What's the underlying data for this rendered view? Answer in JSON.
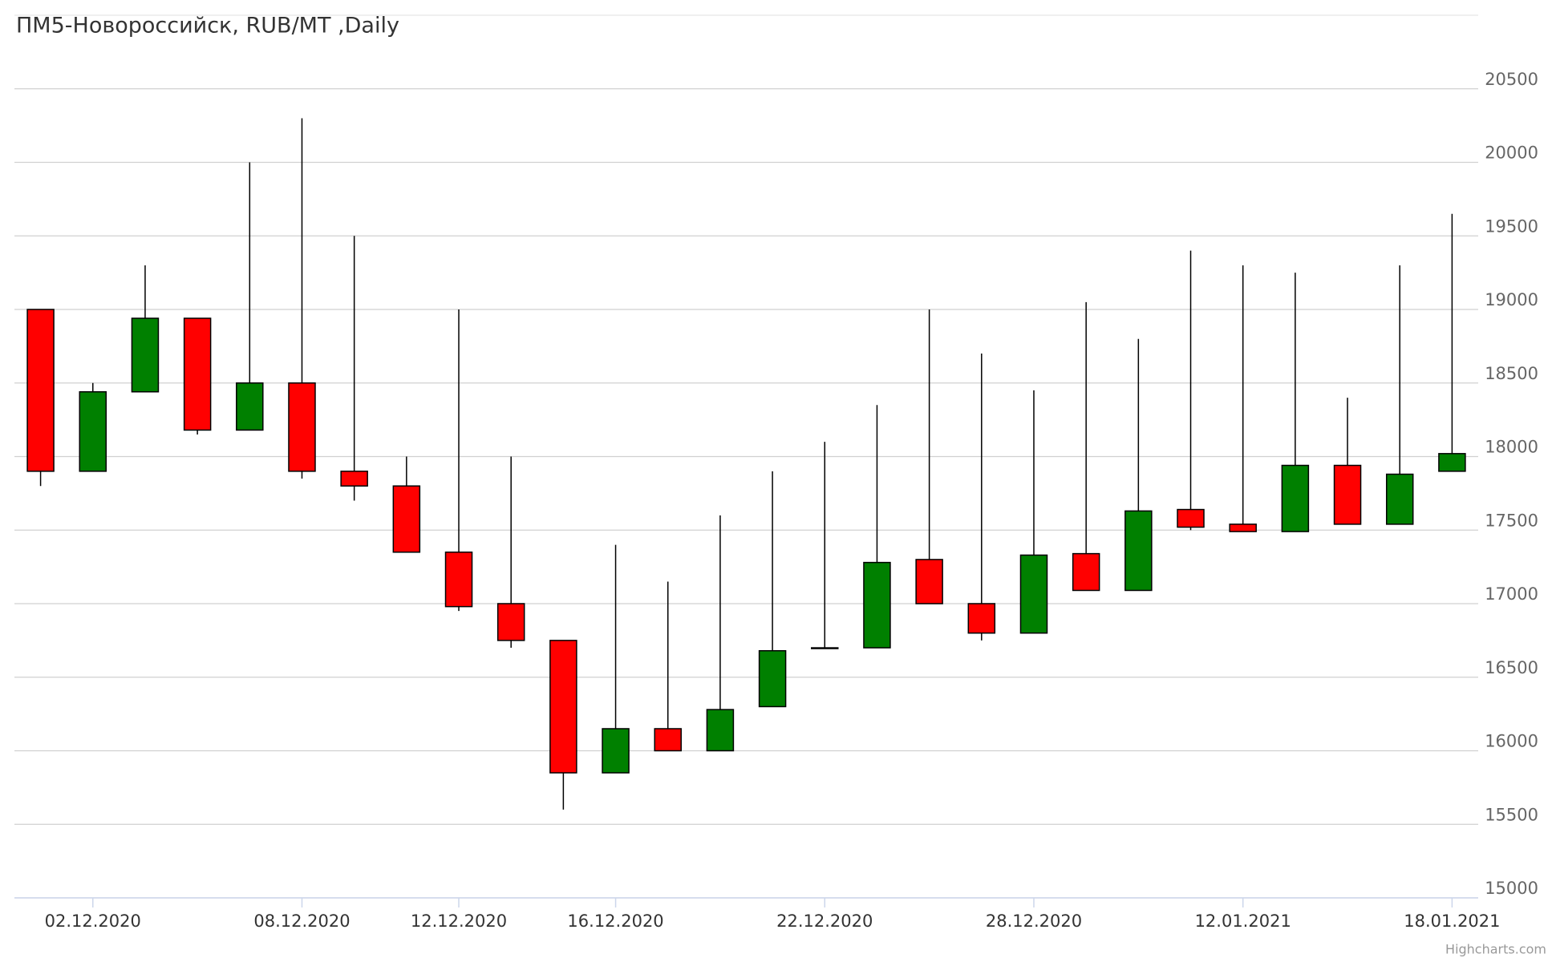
{
  "chart_data": {
    "type": "candlestick",
    "title": "ПМ5-Новороссийск, RUB/MT ,Daily",
    "credits": "Highcharts.com",
    "categories": [
      null,
      "02.12.2020",
      null,
      null,
      null,
      "08.12.2020",
      null,
      null,
      "12.12.2020",
      null,
      null,
      "16.12.2020",
      null,
      null,
      null,
      "22.12.2020",
      null,
      null,
      null,
      "28.12.2020",
      null,
      null,
      null,
      "12.01.2021",
      null,
      null,
      null,
      "18.01.2021"
    ],
    "open": [
      19000,
      17900,
      18440,
      18940,
      18180,
      18500,
      17900,
      17800,
      17350,
      17000,
      16750,
      15850,
      16150,
      16000,
      16300,
      16700,
      16700,
      17300,
      17000,
      16800,
      17340,
      17090,
      17640,
      17540,
      17490,
      17940,
      17540,
      17900
    ],
    "high": [
      19000,
      18500,
      19300,
      18940,
      20000,
      20300,
      19500,
      18000,
      19000,
      18000,
      16750,
      17400,
      17150,
      17600,
      17900,
      18100,
      18350,
      19000,
      18700,
      18450,
      19050,
      18800,
      19400,
      19300,
      19250,
      18400,
      19300,
      19650
    ],
    "low": [
      17800,
      17900,
      18440,
      18150,
      18180,
      17850,
      17700,
      17350,
      16950,
      16700,
      15600,
      15850,
      16000,
      16000,
      16300,
      16700,
      16700,
      17000,
      16750,
      16800,
      17090,
      17090,
      17500,
      17490,
      17490,
      17540,
      17540,
      17900
    ],
    "close": [
      17900,
      18440,
      18940,
      18180,
      18500,
      17900,
      17800,
      17350,
      16980,
      16750,
      15850,
      16150,
      16000,
      16280,
      16680,
      16700,
      17280,
      17000,
      16800,
      17330,
      17090,
      17630,
      17520,
      17490,
      17940,
      17540,
      17880,
      18020
    ],
    "up_color": "#008000",
    "down_color": "#ff0000",
    "ylim": [
      15000,
      21000
    ],
    "yticks": [
      15000,
      15500,
      16000,
      16500,
      17000,
      17500,
      18000,
      18500,
      19000,
      19500,
      20000,
      20500
    ],
    "grid": true
  }
}
